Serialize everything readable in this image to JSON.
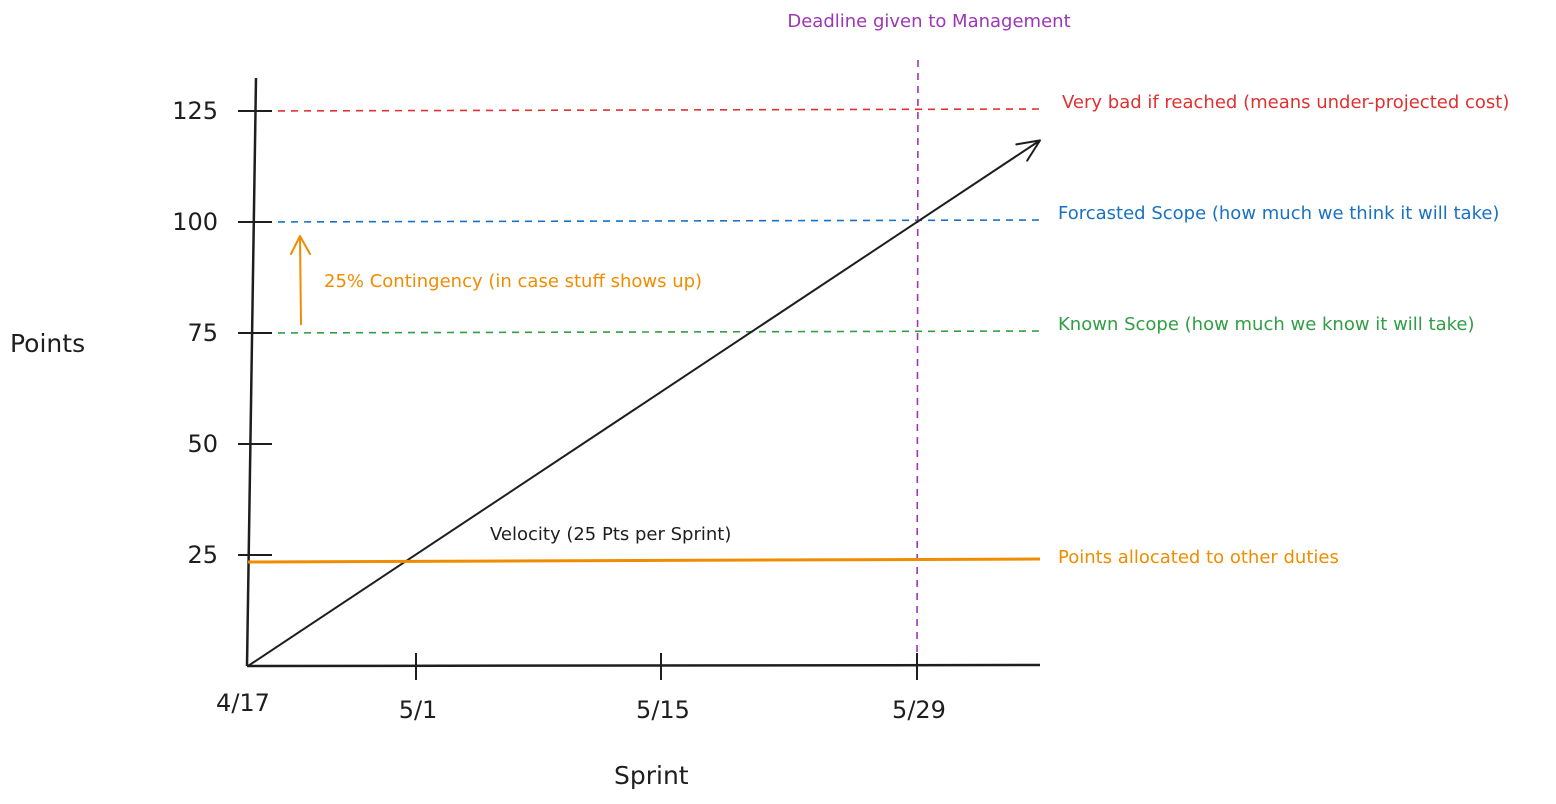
{
  "chart_data": {
    "type": "line",
    "ylabel": "Points",
    "xlabel": "Sprint",
    "x_ticks": [
      "4/17",
      "5/1",
      "5/15",
      "5/29"
    ],
    "y_ticks": [
      25,
      50,
      75,
      100,
      125
    ],
    "ylim": [
      0,
      135
    ],
    "grid": false,
    "series": [
      {
        "name": "Velocity (25 Pts per Sprint)",
        "color": "#1e1e1e",
        "points": [
          {
            "x": "4/17",
            "y": 0
          },
          {
            "x": "5/29",
            "y": 100
          }
        ],
        "extends_with_arrow": true
      },
      {
        "name": "Points allocated to other duties",
        "color": "#f08c00",
        "y": 25
      }
    ],
    "reference_lines": [
      {
        "y": 125,
        "label": "Very bad if reached (means under-projected cost)",
        "color": "#e03131",
        "style": "dashed"
      },
      {
        "y": 100,
        "label": "Forcasted Scope (how much we think it will take)",
        "color": "#1971c2",
        "style": "dashed"
      },
      {
        "y": 75,
        "label": "Known Scope (how much we know it will take)",
        "color": "#2f9e44",
        "style": "dashed"
      }
    ],
    "deadline": {
      "x": "5/29",
      "label": "Deadline given to Management",
      "color": "#9c36b5"
    },
    "contingency": {
      "from": 75,
      "to": 100,
      "label": "25% Contingency (in case stuff shows up)",
      "color": "#f08c00"
    }
  }
}
